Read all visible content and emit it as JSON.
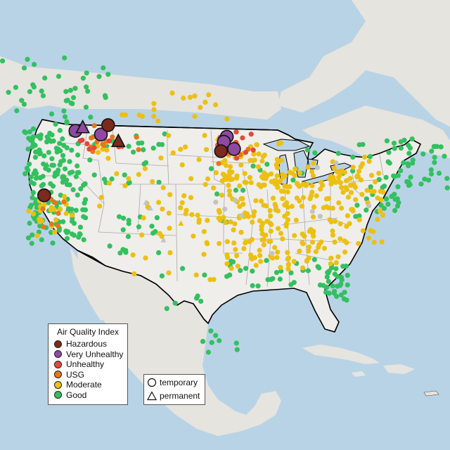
{
  "colors": {
    "water": "#b9d3e6",
    "land_us": "#f0eeea",
    "land_other": "#e6e4df",
    "border": "#000000",
    "state_lines": "#a9a9a9",
    "Hazardous": "#7b2a1e",
    "Very Unhealthy": "#8e4aa0",
    "Unhealthy": "#e3493b",
    "USG": "#e8761b",
    "Moderate": "#ecc012",
    "Good": "#33c060",
    "Nodata": "#c3c3c3"
  },
  "legend": {
    "title": "Air Quality Index",
    "categories": [
      "Hazardous",
      "Very Unhealthy",
      "Unhealthy",
      "USG",
      "Moderate",
      "Good"
    ]
  },
  "monitor_legend": {
    "items": [
      {
        "shape": "circle",
        "label": "temporary"
      },
      {
        "shape": "triangle",
        "label": "permanent"
      }
    ]
  },
  "monitors": [
    {
      "lon": -117.5,
      "lat": 48.6,
      "category": "Very Unhealthy",
      "type": "temporary"
    },
    {
      "lon": -116.5,
      "lat": 49.0,
      "category": "Very Unhealthy",
      "type": "permanent"
    },
    {
      "lon": -114.0,
      "lat": 48.1,
      "category": "Very Unhealthy",
      "type": "temporary"
    },
    {
      "lon": -111.6,
      "lat": 47.1,
      "category": "Hazardous",
      "type": "permanent"
    },
    {
      "lon": -121.8,
      "lat": 39.7,
      "category": "Hazardous",
      "type": "temporary"
    },
    {
      "lon": -96.7,
      "lat": 47.8,
      "category": "Very Unhealthy",
      "type": "temporary"
    },
    {
      "lon": -97.1,
      "lat": 47.1,
      "category": "Very Unhealthy",
      "type": "temporary"
    },
    {
      "lon": -97.5,
      "lat": 45.8,
      "category": "Hazardous",
      "type": "temporary"
    },
    {
      "lon": -95.7,
      "lat": 46.1,
      "category": "Very Unhealthy",
      "type": "temporary"
    },
    {
      "lon": -113.0,
      "lat": 49.4,
      "category": "Hazardous",
      "type": "temporary"
    },
    {
      "lon": -107.8,
      "lat": 38.7,
      "category": "Nodata",
      "type": "permanent"
    },
    {
      "lon": -107.2,
      "lat": 37.9,
      "category": "Nodata",
      "type": "permanent"
    },
    {
      "lon": -105.4,
      "lat": 33.5,
      "category": "Nodata",
      "type": "permanent"
    },
    {
      "lon": -103.0,
      "lat": 35.8,
      "category": "Moderate",
      "type": "permanent"
    },
    {
      "lon": -121.4,
      "lat": 43.9,
      "category": "Good",
      "type": "permanent"
    },
    {
      "lon": -122.8,
      "lat": 42.3,
      "category": "Good",
      "type": "permanent"
    },
    {
      "lon": -119.7,
      "lat": 38.7,
      "category": "Good",
      "type": "permanent"
    }
  ],
  "regions": [
    {
      "category": "Good",
      "lon": [
        -124.5,
        -117
      ],
      "lat": [
        42,
        49
      ],
      "n": 80
    },
    {
      "category": "Good",
      "lon": [
        -124,
        -116
      ],
      "lat": [
        33,
        42
      ],
      "n": 90
    },
    {
      "category": "Good",
      "lon": [
        -135,
        -113
      ],
      "lat": [
        49.2,
        59
      ],
      "n": 65
    },
    {
      "category": "Good",
      "lon": [
        -116,
        -104
      ],
      "lat": [
        41,
        48.5
      ],
      "n": 25
    },
    {
      "category": "Good",
      "lon": [
        -113,
        -106
      ],
      "lat": [
        31.5,
        37.5
      ],
      "n": 18
    },
    {
      "category": "Good",
      "lon": [
        -83.5,
        -80
      ],
      "lat": [
        25.2,
        30.5
      ],
      "n": 28
    },
    {
      "category": "Good",
      "lon": [
        -97,
        -81
      ],
      "lat": [
        27,
        31
      ],
      "n": 32
    },
    {
      "category": "Good",
      "lon": [
        -75,
        -66
      ],
      "lat": [
        40.5,
        47.5
      ],
      "n": 45
    },
    {
      "category": "Good",
      "lon": [
        -79,
        -73
      ],
      "lat": [
        36,
        41
      ],
      "n": 22
    },
    {
      "category": "Good",
      "lon": [
        -88,
        -72
      ],
      "lat": [
        41,
        47
      ],
      "n": 15
    },
    {
      "category": "Good",
      "lon": [
        -100,
        -91
      ],
      "lat": [
        36,
        44
      ],
      "n": 10
    },
    {
      "category": "Good",
      "lon": [
        -106,
        -98
      ],
      "lat": [
        24,
        30
      ],
      "n": 8
    },
    {
      "category": "Good",
      "lon": [
        -100,
        -94
      ],
      "lat": [
        18,
        21
      ],
      "n": 8
    },
    {
      "category": "Moderate",
      "lon": [
        -98,
        -75
      ],
      "lat": [
        33,
        43
      ],
      "n": 210
    },
    {
      "category": "Moderate",
      "lon": [
        -97,
        -80
      ],
      "lat": [
        29.5,
        33
      ],
      "n": 45
    },
    {
      "category": "Moderate",
      "lon": [
        -97,
        -89
      ],
      "lat": [
        41,
        47
      ],
      "n": 45
    },
    {
      "category": "Moderate",
      "lon": [
        -115,
        -97
      ],
      "lat": [
        37,
        48.5
      ],
      "n": 50
    },
    {
      "category": "Moderate",
      "lon": [
        -112,
        -96
      ],
      "lat": [
        49.2,
        54
      ],
      "n": 18
    },
    {
      "category": "Moderate",
      "lon": [
        -90,
        -76
      ],
      "lat": [
        41,
        45
      ],
      "n": 30
    },
    {
      "category": "Moderate",
      "lon": [
        -124,
        -117
      ],
      "lat": [
        34,
        40
      ],
      "n": 22
    },
    {
      "category": "Moderate",
      "lon": [
        -110,
        -98
      ],
      "lat": [
        28,
        37
      ],
      "n": 22
    },
    {
      "category": "USG",
      "lon": [
        -117,
        -108
      ],
      "lat": [
        45.5,
        49.5
      ],
      "n": 12
    },
    {
      "category": "USG",
      "lon": [
        -98,
        -92
      ],
      "lat": [
        44,
        48.5
      ],
      "n": 10
    },
    {
      "category": "USG",
      "lon": [
        -122,
        -118
      ],
      "lat": [
        35,
        39.5
      ],
      "n": 8
    },
    {
      "category": "Unhealthy",
      "lon": [
        -117,
        -110
      ],
      "lat": [
        46,
        49.5
      ],
      "n": 8
    },
    {
      "category": "Unhealthy",
      "lon": [
        -98,
        -92.5
      ],
      "lat": [
        44.5,
        48.5
      ],
      "n": 12
    },
    {
      "category": "Nodata",
      "lon": [
        -100,
        -77
      ],
      "lat": [
        30,
        46
      ],
      "n": 10
    }
  ]
}
